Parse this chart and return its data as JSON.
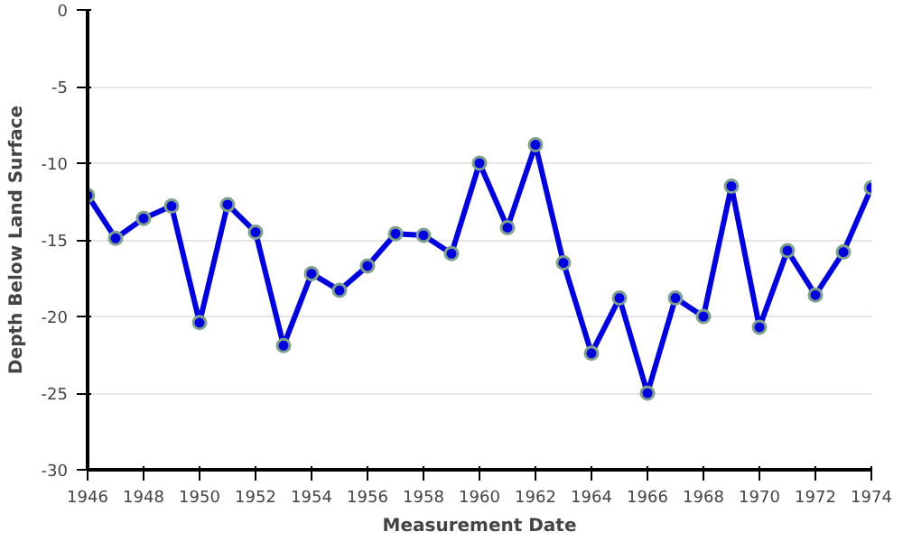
{
  "chart_data": {
    "type": "line",
    "xlabel": "Measurement Date",
    "ylabel": "Depth Below Land Surface",
    "x": [
      1946,
      1947,
      1948,
      1949,
      1950,
      1951,
      1952,
      1953,
      1954,
      1955,
      1956,
      1957,
      1958,
      1959,
      1960,
      1961,
      1962,
      1963,
      1964,
      1965,
      1966,
      1967,
      1968,
      1969,
      1970,
      1971,
      1972,
      1973,
      1974
    ],
    "series": [
      {
        "color": "#0000dd",
        "values": [
          -12.1,
          -14.9,
          -13.6,
          -12.8,
          -20.4,
          -12.7,
          -14.5,
          -21.9,
          -17.2,
          -18.3,
          -16.7,
          -14.6,
          -14.7,
          -15.9,
          -10.0,
          -14.2,
          -8.8,
          -16.5,
          -22.4,
          -18.8,
          -25.0,
          -18.8,
          -20.0,
          -11.5,
          -20.7,
          -15.7,
          -18.6,
          -15.8,
          -11.6
        ]
      }
    ],
    "xlim": [
      1946,
      1974
    ],
    "ylim": [
      -30,
      0
    ],
    "xticks": [
      1946,
      1948,
      1950,
      1952,
      1954,
      1956,
      1958,
      1960,
      1962,
      1964,
      1966,
      1968,
      1970,
      1972,
      1974
    ],
    "yticks": [
      -30,
      -25,
      -20,
      -15,
      -10,
      -5,
      0
    ],
    "grid": "y",
    "marker": "circle",
    "line_style": "solid"
  }
}
